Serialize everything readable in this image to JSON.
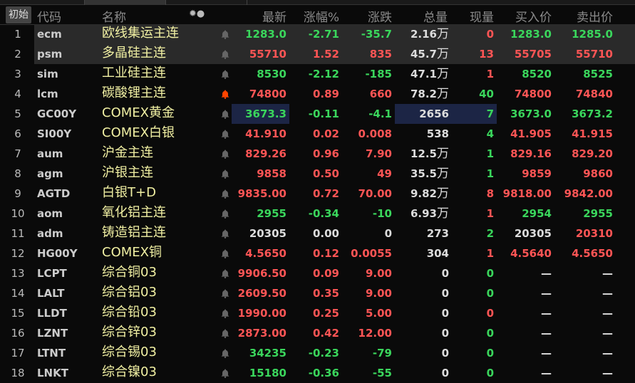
{
  "header": {
    "init_button": "初始",
    "code": "代码",
    "name": "名称",
    "latest": "最新",
    "change_pct": "涨幅%",
    "change": "涨跌",
    "volume": "总量",
    "cur_volume": "现量",
    "bid": "买入价",
    "ask": "卖出价"
  },
  "colors": {
    "up": "#ff5555",
    "down": "#3ad65c",
    "flat": "#dcdcdc",
    "name": "#f1f0a3",
    "alert_active": "#ff4400"
  },
  "rows": [
    {
      "idx": "1",
      "code": "ecm",
      "name": "欧线集运主连",
      "latest": "1283.0",
      "pct": "-2.71",
      "chg": "-35.7",
      "vol": "2.16",
      "vol_unit": "万",
      "cur": "0",
      "bid": "1283.0",
      "ask": "1285.0",
      "pc": "g",
      "cc": "rd",
      "bc": "g",
      "ac": "g",
      "selected": true
    },
    {
      "idx": "2",
      "code": "psm",
      "name": "多晶硅主连",
      "latest": "55710",
      "pct": "1.52",
      "chg": "835",
      "vol": "45.7",
      "vol_unit": "万",
      "cur": "13",
      "bid": "55705",
      "ask": "55710",
      "pc": "rd",
      "cc": "rd",
      "bc": "rd",
      "ac": "rd",
      "selected": true
    },
    {
      "idx": "3",
      "code": "sim",
      "name": "工业硅主连",
      "latest": "8530",
      "pct": "-2.12",
      "chg": "-185",
      "vol": "47.1",
      "vol_unit": "万",
      "cur": "1",
      "bid": "8520",
      "ask": "8525",
      "pc": "g",
      "cc": "rd",
      "bc": "g",
      "ac": "g"
    },
    {
      "idx": "4",
      "code": "lcm",
      "name": "碳酸锂主连",
      "latest": "74800",
      "pct": "0.89",
      "chg": "660",
      "vol": "78.2",
      "vol_unit": "万",
      "cur": "40",
      "bid": "74800",
      "ask": "74840",
      "pc": "rd",
      "cc": "g",
      "bc": "rd",
      "ac": "rd",
      "alert": true
    },
    {
      "idx": "5",
      "code": "GC00Y",
      "name": "COMEX黄金",
      "latest": "3673.3",
      "pct": "-0.11",
      "chg": "-4.1",
      "vol": "2656",
      "vol_unit": "",
      "cur": "7",
      "bid": "3673.0",
      "ask": "3673.2",
      "pc": "g",
      "cc": "g",
      "bc": "g",
      "ac": "g",
      "highlight": true
    },
    {
      "idx": "6",
      "code": "SI00Y",
      "name": "COMEX白银",
      "latest": "41.910",
      "pct": "0.02",
      "chg": "0.008",
      "vol": "538",
      "vol_unit": "",
      "cur": "4",
      "bid": "41.905",
      "ask": "41.915",
      "pc": "rd",
      "cc": "g",
      "bc": "rd",
      "ac": "rd"
    },
    {
      "idx": "7",
      "code": "aum",
      "name": "沪金主连",
      "latest": "829.26",
      "pct": "0.96",
      "chg": "7.90",
      "vol": "12.5",
      "vol_unit": "万",
      "cur": "1",
      "bid": "829.16",
      "ask": "829.20",
      "pc": "rd",
      "cc": "g",
      "bc": "rd",
      "ac": "rd"
    },
    {
      "idx": "8",
      "code": "agm",
      "name": "沪银主连",
      "latest": "9858",
      "pct": "0.50",
      "chg": "49",
      "vol": "35.5",
      "vol_unit": "万",
      "cur": "1",
      "bid": "9859",
      "ask": "9860",
      "pc": "rd",
      "cc": "g",
      "bc": "rd",
      "ac": "rd"
    },
    {
      "idx": "9",
      "code": "AGTD",
      "name": "白银T+D",
      "latest": "9835.00",
      "pct": "0.72",
      "chg": "70.00",
      "vol": "9.82",
      "vol_unit": "万",
      "cur": "8",
      "bid": "9818.00",
      "ask": "9842.00",
      "pc": "rd",
      "cc": "rd",
      "bc": "rd",
      "ac": "rd"
    },
    {
      "idx": "10",
      "code": "aom",
      "name": "氧化铝主连",
      "latest": "2955",
      "pct": "-0.34",
      "chg": "-10",
      "vol": "6.93",
      "vol_unit": "万",
      "cur": "1",
      "bid": "2954",
      "ask": "2955",
      "pc": "g",
      "cc": "rd",
      "bc": "g",
      "ac": "g"
    },
    {
      "idx": "11",
      "code": "adm",
      "name": "铸造铝主连",
      "latest": "20305",
      "pct": "0.00",
      "chg": "0",
      "vol": "273",
      "vol_unit": "",
      "cur": "2",
      "bid": "20305",
      "ask": "20310",
      "pc": "w",
      "cc": "g",
      "bc": "w",
      "ac": "rd"
    },
    {
      "idx": "12",
      "code": "HG00Y",
      "name": "COMEX铜",
      "latest": "4.5650",
      "pct": "0.12",
      "chg": "0.0055",
      "vol": "304",
      "vol_unit": "",
      "cur": "1",
      "bid": "4.5640",
      "ask": "4.5650",
      "pc": "rd",
      "cc": "rd",
      "bc": "rd",
      "ac": "rd"
    },
    {
      "idx": "13",
      "code": "LCPT",
      "name": "综合铜03",
      "latest": "9906.50",
      "pct": "0.09",
      "chg": "9.00",
      "vol": "0",
      "vol_unit": "",
      "cur": "0",
      "bid": "—",
      "ask": "—",
      "pc": "rd",
      "cc": "g",
      "bc": "w",
      "ac": "w"
    },
    {
      "idx": "14",
      "code": "LALT",
      "name": "综合铝03",
      "latest": "2609.50",
      "pct": "0.35",
      "chg": "9.00",
      "vol": "0",
      "vol_unit": "",
      "cur": "0",
      "bid": "—",
      "ask": "—",
      "pc": "rd",
      "cc": "g",
      "bc": "w",
      "ac": "w"
    },
    {
      "idx": "15",
      "code": "LLDT",
      "name": "综合铅03",
      "latest": "1990.00",
      "pct": "0.25",
      "chg": "5.00",
      "vol": "0",
      "vol_unit": "",
      "cur": "0",
      "bid": "—",
      "ask": "—",
      "pc": "rd",
      "cc": "rd",
      "bc": "w",
      "ac": "w"
    },
    {
      "idx": "16",
      "code": "LZNT",
      "name": "综合锌03",
      "latest": "2873.00",
      "pct": "0.42",
      "chg": "12.00",
      "vol": "0",
      "vol_unit": "",
      "cur": "0",
      "bid": "—",
      "ask": "—",
      "pc": "rd",
      "cc": "g",
      "bc": "w",
      "ac": "w"
    },
    {
      "idx": "17",
      "code": "LTNT",
      "name": "综合锡03",
      "latest": "34235",
      "pct": "-0.23",
      "chg": "-79",
      "vol": "0",
      "vol_unit": "",
      "cur": "0",
      "bid": "—",
      "ask": "—",
      "pc": "g",
      "cc": "g",
      "bc": "w",
      "ac": "w"
    },
    {
      "idx": "18",
      "code": "LNKT",
      "name": "综合镍03",
      "latest": "15180",
      "pct": "-0.36",
      "chg": "-55",
      "vol": "0",
      "vol_unit": "",
      "cur": "0",
      "bid": "—",
      "ask": "—",
      "pc": "g",
      "cc": "g",
      "bc": "w",
      "ac": "w"
    }
  ]
}
